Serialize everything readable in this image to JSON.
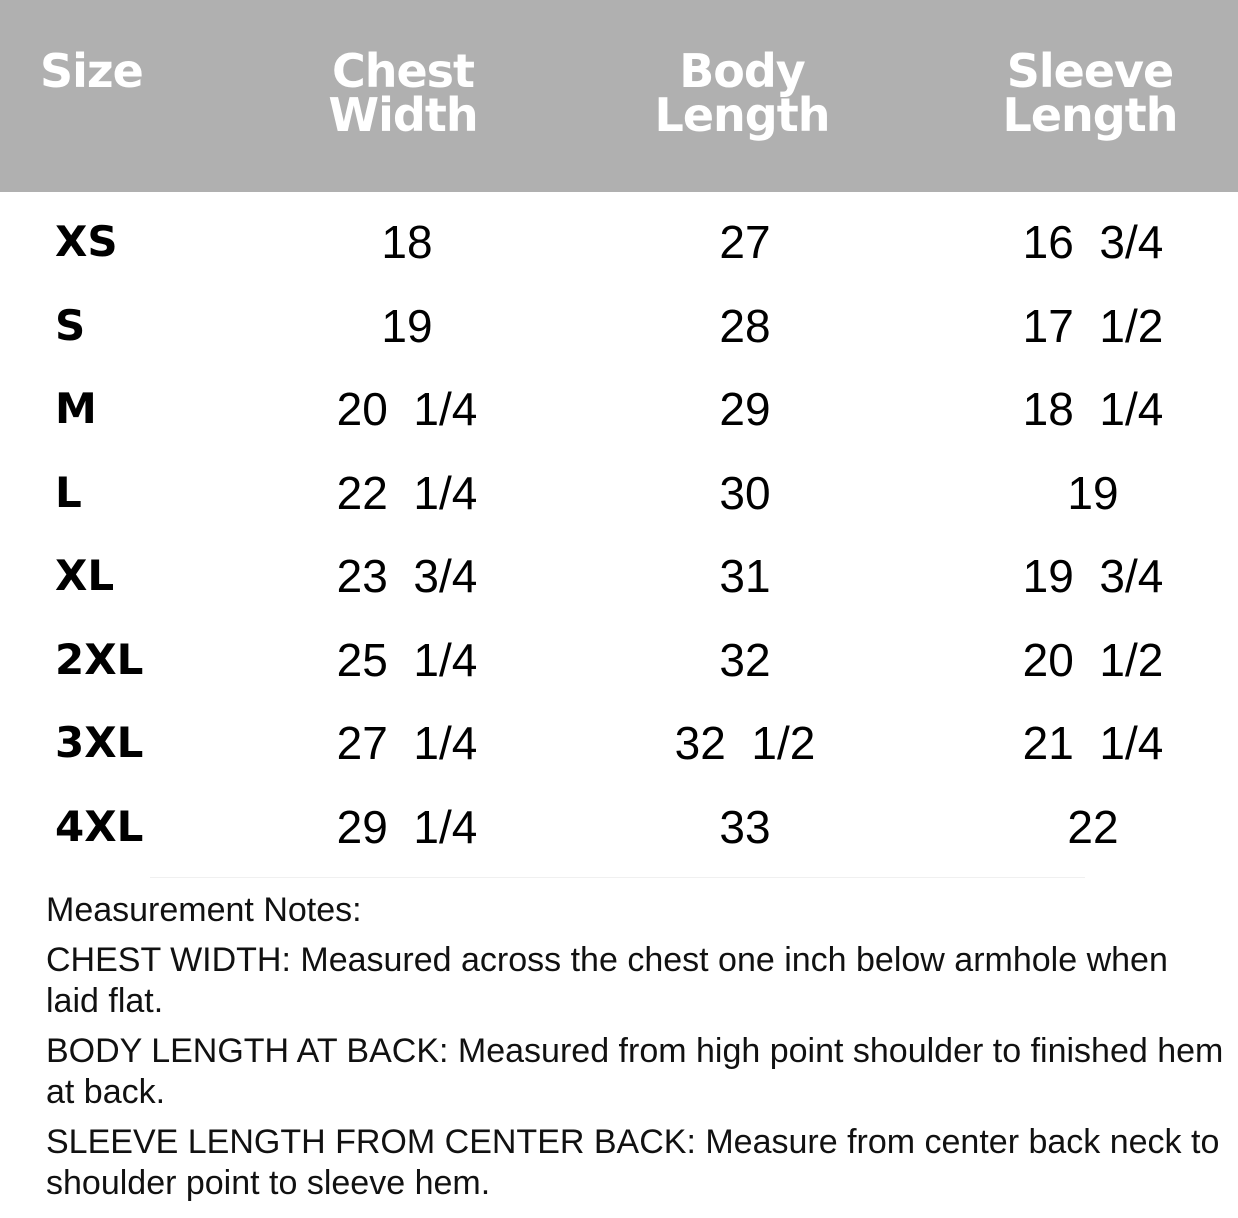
{
  "header": {
    "columns": [
      {
        "line1": "Size",
        "line2": ""
      },
      {
        "line1": "Chest",
        "line2": "Width"
      },
      {
        "line1": "Body",
        "line2": "Length"
      },
      {
        "line1": "Sleeve",
        "line2": "Length"
      }
    ],
    "background": "#b0b0b0"
  },
  "rows": [
    {
      "size": "XS",
      "chest": "18",
      "body": "27",
      "sleeve": "16  3/4"
    },
    {
      "size": "S",
      "chest": "19",
      "body": "28",
      "sleeve": "17  1/2"
    },
    {
      "size": "M",
      "chest": "20  1/4",
      "body": "29",
      "sleeve": "18  1/4"
    },
    {
      "size": "L",
      "chest": "22  1/4",
      "body": "30",
      "sleeve": "19"
    },
    {
      "size": "XL",
      "chest": "23  3/4",
      "body": "31",
      "sleeve": "19  3/4"
    },
    {
      "size": "2XL",
      "chest": "25  1/4",
      "body": "32",
      "sleeve": "20  1/2"
    },
    {
      "size": "3XL",
      "chest": "27  1/4",
      "body": "32  1/2",
      "sleeve": "21  1/4"
    },
    {
      "size": "4XL",
      "chest": "29  1/4",
      "body": "33",
      "sleeve": "22"
    }
  ],
  "notes": {
    "title": "Measurement Notes:",
    "items": [
      {
        "label": "CHEST WIDTH:",
        "text": " Measured across the chest one inch below armhole when laid flat."
      },
      {
        "label": "BODY LENGTH AT BACK:",
        "text": " Measured from high point shoulder to finished hem at back."
      },
      {
        "label": "SLEEVE LENGTH FROM CENTER BACK:",
        "text": " Measure from center back neck to shoulder point to sleeve hem."
      }
    ]
  }
}
